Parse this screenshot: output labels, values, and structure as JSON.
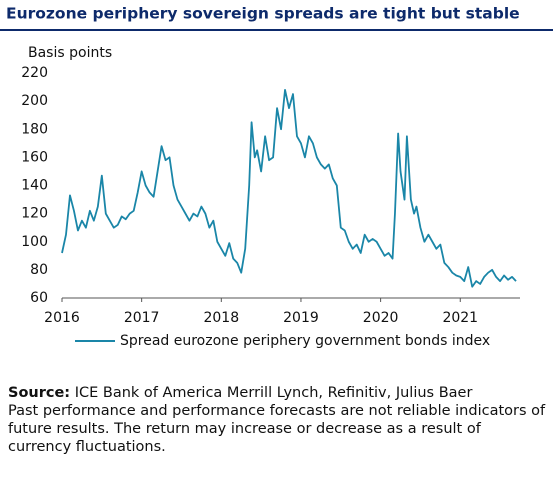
{
  "chart_data": {
    "type": "line",
    "title": "Eurozone periphery sovereign spreads are tight but stable",
    "y_axis_label": "Basis points",
    "x": [
      2016.0,
      2016.05,
      2016.1,
      2016.15,
      2016.2,
      2016.25,
      2016.3,
      2016.35,
      2016.4,
      2016.45,
      2016.5,
      2016.55,
      2016.6,
      2016.65,
      2016.7,
      2016.75,
      2016.8,
      2016.85,
      2016.9,
      2016.95,
      2017.0,
      2017.05,
      2017.1,
      2017.15,
      2017.2,
      2017.25,
      2017.3,
      2017.35,
      2017.4,
      2017.45,
      2017.5,
      2017.55,
      2017.6,
      2017.65,
      2017.7,
      2017.75,
      2017.8,
      2017.85,
      2017.9,
      2017.95,
      2018.0,
      2018.05,
      2018.1,
      2018.15,
      2018.2,
      2018.25,
      2018.3,
      2018.35,
      2018.38,
      2018.42,
      2018.45,
      2018.5,
      2018.55,
      2018.6,
      2018.65,
      2018.7,
      2018.75,
      2018.8,
      2018.85,
      2018.9,
      2018.95,
      2019.0,
      2019.05,
      2019.1,
      2019.15,
      2019.2,
      2019.25,
      2019.3,
      2019.35,
      2019.4,
      2019.45,
      2019.5,
      2019.55,
      2019.6,
      2019.65,
      2019.7,
      2019.75,
      2019.8,
      2019.85,
      2019.9,
      2019.95,
      2020.0,
      2020.05,
      2020.1,
      2020.15,
      2020.18,
      2020.22,
      2020.25,
      2020.3,
      2020.33,
      2020.38,
      2020.42,
      2020.45,
      2020.5,
      2020.55,
      2020.6,
      2020.65,
      2020.7,
      2020.75,
      2020.8,
      2020.85,
      2020.9,
      2020.95,
      2021.0,
      2021.05,
      2021.1,
      2021.15,
      2021.2,
      2021.25,
      2021.3,
      2021.35,
      2021.4,
      2021.45,
      2021.5,
      2021.55,
      2021.6,
      2021.65,
      2021.7
    ],
    "series": [
      {
        "name": "Spread eurozone periphery government bonds index",
        "color": "#1a86a8",
        "values": [
          92,
          105,
          133,
          122,
          108,
          115,
          110,
          122,
          115,
          125,
          147,
          120,
          115,
          110,
          112,
          118,
          116,
          120,
          122,
          135,
          150,
          140,
          135,
          132,
          150,
          168,
          158,
          160,
          140,
          130,
          125,
          120,
          115,
          120,
          118,
          125,
          120,
          110,
          115,
          100,
          95,
          90,
          99,
          88,
          85,
          78,
          95,
          140,
          185,
          160,
          165,
          150,
          175,
          158,
          160,
          195,
          180,
          208,
          195,
          205,
          175,
          170,
          160,
          175,
          170,
          160,
          155,
          152,
          155,
          145,
          140,
          110,
          108,
          100,
          95,
          98,
          92,
          105,
          100,
          102,
          100,
          95,
          90,
          92,
          88,
          120,
          177,
          150,
          130,
          175,
          130,
          120,
          125,
          110,
          100,
          105,
          100,
          95,
          98,
          85,
          82,
          78,
          76,
          75,
          72,
          82,
          68,
          72,
          70,
          75,
          78,
          80,
          75,
          72,
          76,
          73,
          75,
          72
        ]
      }
    ],
    "xlim": [
      2016,
      2021.75
    ],
    "xticks": [
      2016,
      2017,
      2018,
      2019,
      2020,
      2021
    ],
    "ylim": [
      60,
      220
    ],
    "yticks": [
      60,
      80,
      100,
      120,
      140,
      160,
      180,
      200,
      220
    ],
    "grid": false
  },
  "footer": {
    "source_label": "Source:",
    "source_text": "ICE Bank of America Merrill Lynch, Refinitiv, Julius Baer",
    "disclaimer": "Past performance and performance forecasts are not reliable indicators of future results. The return may increase or decrease as a result of currency fluctuations."
  }
}
